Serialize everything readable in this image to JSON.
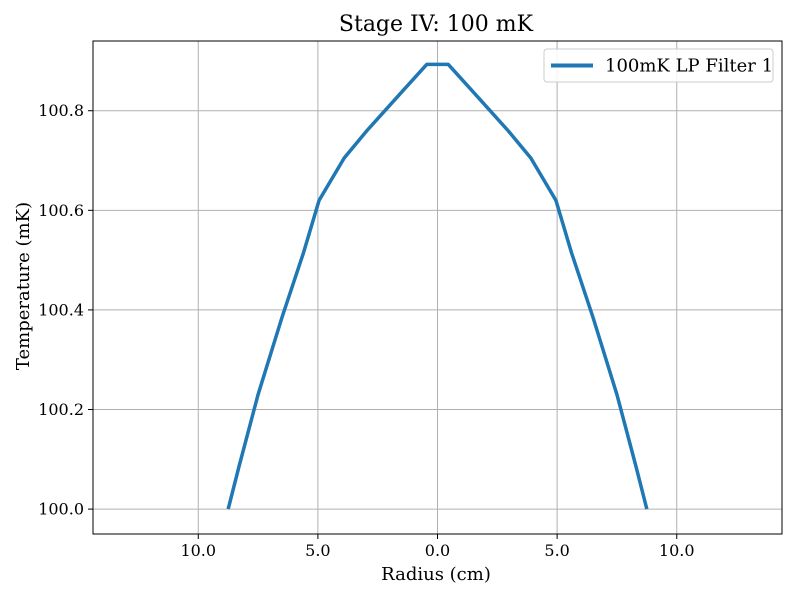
{
  "chart_data": {
    "type": "line",
    "title": "Stage IV: 100 mK",
    "xlabel": "Radius (cm)",
    "ylabel": "Temperature (mK)",
    "xlim": [
      -14.4,
      14.4
    ],
    "ylim": [
      99.95,
      100.94
    ],
    "x_ticks": [
      {
        "value": -10,
        "label": "10.0"
      },
      {
        "value": -5,
        "label": "5.0"
      },
      {
        "value": 0,
        "label": "0.0"
      },
      {
        "value": 5,
        "label": "5.0"
      },
      {
        "value": 10,
        "label": "10.0"
      }
    ],
    "y_ticks": [
      {
        "value": 100.0,
        "label": "100.0"
      },
      {
        "value": 100.2,
        "label": "100.2"
      },
      {
        "value": 100.4,
        "label": "100.4"
      },
      {
        "value": 100.6,
        "label": "100.6"
      },
      {
        "value": 100.8,
        "label": "100.8"
      }
    ],
    "grid": true,
    "legend": {
      "placement": "top-right"
    },
    "series": [
      {
        "name": "100mK LP Filter 1",
        "color": "#1f77b4",
        "x": [
          -8.75,
          -8.3,
          -7.5,
          -6.5,
          -5.6,
          -4.95,
          -3.9,
          -2.95,
          -1.45,
          -0.45,
          0.45,
          1.45,
          2.95,
          3.9,
          4.95,
          5.6,
          6.5,
          7.5,
          8.3,
          8.75
        ],
        "y": [
          100.0,
          100.085,
          100.23,
          100.385,
          100.515,
          100.62,
          100.705,
          100.76,
          100.84,
          100.893,
          100.893,
          100.84,
          100.76,
          100.705,
          100.62,
          100.515,
          100.385,
          100.23,
          100.085,
          100.0
        ]
      }
    ]
  }
}
